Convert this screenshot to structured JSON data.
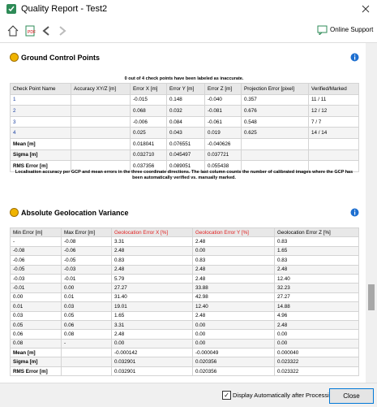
{
  "window": {
    "title": "Quality Report - Test2"
  },
  "toolbar": {
    "support": "Online Support"
  },
  "gcp": {
    "title": "Ground Control Points",
    "note": "0 out of 4 check points have been labeled as inaccurate.",
    "table": {
      "headers": [
        "Check Point Name",
        "Accuracy XY/Z [m]",
        "Error X [m]",
        "Error Y [m]",
        "Error Z [m]",
        "Projection Error [pixel]",
        "Verified/Marked"
      ],
      "rows": [
        [
          "1",
          null,
          "-0.015",
          "0.148",
          "-0.040",
          "0.357",
          "11 / 11"
        ],
        [
          "2",
          null,
          "0.068",
          "0.032",
          "-0.081",
          "0.676",
          "12 / 12"
        ],
        [
          "3",
          null,
          "-0.006",
          "0.084",
          "-0.061",
          "0.548",
          "7 / 7"
        ],
        [
          "4",
          null,
          "0.025",
          "0.043",
          "0.019",
          "0.625",
          "14 / 14"
        ]
      ],
      "summary": [
        [
          "Mean [m]",
          null,
          "0.018041",
          "0.076551",
          "-0.040626",
          null,
          null
        ],
        [
          "Sigma [m]",
          null,
          "0.032710",
          "0.045497",
          "0.037721",
          null,
          null
        ],
        [
          "RMS Error [m]",
          null,
          "0.037356",
          "0.089051",
          "0.055438",
          null,
          null
        ]
      ]
    },
    "caption": "Localisation accuracy per GCP and mean errors in the three coordinate directions. The last column counts the number of calibrated images where the GCP has been automatically verified vs. manually marked."
  },
  "geolocation": {
    "title": "Absolute Geolocation Variance",
    "table": {
      "headers": [
        "Min Error [m]",
        "Max Error [m]",
        "Geolocation Error X [%]",
        "Geolocation Error Y [%]",
        "Geolocation Error Z [%]"
      ],
      "rows": [
        [
          "-",
          "-0.08",
          "3.31",
          "2.48",
          "0.83"
        ],
        [
          "-0.08",
          "-0.06",
          "2.48",
          "0.00",
          "1.65"
        ],
        [
          "-0.06",
          "-0.05",
          "0.83",
          "0.83",
          "0.83"
        ],
        [
          "-0.05",
          "-0.03",
          "2.48",
          "2.48",
          "2.48"
        ],
        [
          "-0.03",
          "-0.01",
          "5.79",
          "2.48",
          "12.40"
        ],
        [
          "-0.01",
          "0.00",
          "27.27",
          "33.88",
          "32.23"
        ],
        [
          "0.00",
          "0.01",
          "31.40",
          "42.98",
          "27.27"
        ],
        [
          "0.01",
          "0.03",
          "19.01",
          "12.40",
          "14.88"
        ],
        [
          "0.03",
          "0.05",
          "1.65",
          "2.48",
          "4.96"
        ],
        [
          "0.05",
          "0.06",
          "3.31",
          "0.00",
          "2.48"
        ],
        [
          "0.06",
          "0.08",
          "2.48",
          "0.00",
          "0.00"
        ],
        [
          "0.08",
          "-",
          "0.00",
          "0.00",
          "0.00"
        ]
      ],
      "summary": [
        [
          "Mean [m]",
          null,
          "-0.000142",
          "-0.000049",
          "0.000040"
        ],
        [
          "Sigma [m]",
          null,
          "0.032901",
          "0.020356",
          "0.023322"
        ],
        [
          "RMS Error [m]",
          null,
          "0.032901",
          "0.020356",
          "0.023322"
        ]
      ]
    }
  },
  "footer": {
    "checkbox": "Display Automatically after Processing",
    "button": "Close"
  }
}
